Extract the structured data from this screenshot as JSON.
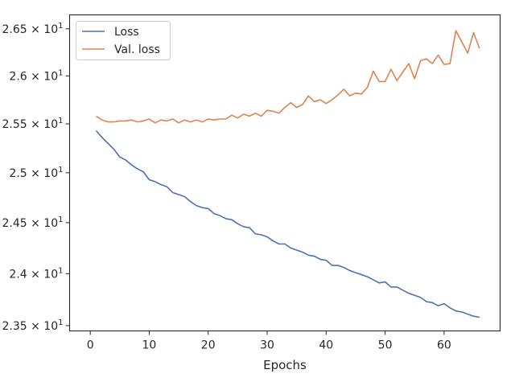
{
  "chart_data": {
    "type": "line",
    "title": "",
    "xlabel": "Epochs",
    "ylabel": "",
    "xlim": [
      -3.5,
      69.5
    ],
    "ylim": [
      23.45,
      26.65
    ],
    "yscale": "log",
    "grid": false,
    "legend_position": "top-left",
    "x_ticks": [
      0,
      10,
      20,
      30,
      40,
      50,
      60
    ],
    "x_tick_labels": [
      "0",
      "10",
      "20",
      "30",
      "40",
      "50",
      "60"
    ],
    "y_ticks": [
      23.5,
      24.0,
      24.5,
      25.0,
      25.5,
      26.0,
      26.5
    ],
    "y_tick_mantissas": [
      "2.35",
      "2.4",
      "2.45",
      "2.5",
      "2.55",
      "2.6",
      "2.65"
    ],
    "y_tick_base": "10",
    "y_tick_exponent": "1",
    "y_tick_times": "×",
    "x": [
      1,
      2,
      3,
      4,
      5,
      6,
      7,
      8,
      9,
      10,
      11,
      12,
      13,
      14,
      15,
      16,
      17,
      18,
      19,
      20,
      21,
      22,
      23,
      24,
      25,
      26,
      27,
      28,
      29,
      30,
      31,
      32,
      33,
      34,
      35,
      36,
      37,
      38,
      39,
      40,
      41,
      42,
      43,
      44,
      45,
      46,
      47,
      48,
      49,
      50,
      51,
      52,
      53,
      54,
      55,
      56,
      57,
      58,
      59,
      60,
      61,
      62,
      63,
      64,
      65,
      66
    ],
    "series": [
      {
        "name": "Loss",
        "color": "#4c72b0",
        "values": [
          25.43,
          25.36,
          25.3,
          25.24,
          25.16,
          25.13,
          25.08,
          25.04,
          25.01,
          24.93,
          24.91,
          24.88,
          24.86,
          24.8,
          24.78,
          24.76,
          24.71,
          24.67,
          24.65,
          24.64,
          24.59,
          24.57,
          24.54,
          24.53,
          24.49,
          24.46,
          24.45,
          24.39,
          24.38,
          24.36,
          24.32,
          24.29,
          24.29,
          24.25,
          24.23,
          24.21,
          24.18,
          24.17,
          24.14,
          24.13,
          24.08,
          24.08,
          24.06,
          24.03,
          24.01,
          23.99,
          23.97,
          23.94,
          23.91,
          23.92,
          23.87,
          23.87,
          23.84,
          23.81,
          23.79,
          23.77,
          23.73,
          23.72,
          23.69,
          23.71,
          23.67,
          23.64,
          23.63,
          23.61,
          23.59,
          23.58
        ]
      },
      {
        "name": "Val. loss",
        "color": "#dd8452",
        "values": [
          25.58,
          25.54,
          25.52,
          25.52,
          25.53,
          25.53,
          25.54,
          25.52,
          25.53,
          25.55,
          25.51,
          25.54,
          25.53,
          25.55,
          25.51,
          25.54,
          25.52,
          25.54,
          25.52,
          25.55,
          25.54,
          25.55,
          25.55,
          25.59,
          25.56,
          25.6,
          25.58,
          25.61,
          25.58,
          25.64,
          25.63,
          25.61,
          25.67,
          25.72,
          25.67,
          25.7,
          25.79,
          25.73,
          25.75,
          25.71,
          25.75,
          25.8,
          25.86,
          25.79,
          25.82,
          25.81,
          25.88,
          26.05,
          25.94,
          25.94,
          26.07,
          25.95,
          26.04,
          26.13,
          25.97,
          26.16,
          26.18,
          26.13,
          26.22,
          26.12,
          26.13,
          26.48,
          26.36,
          26.24,
          26.46,
          26.29
        ]
      }
    ]
  },
  "colors": {
    "axes": "#262626",
    "background": "#ffffff"
  }
}
